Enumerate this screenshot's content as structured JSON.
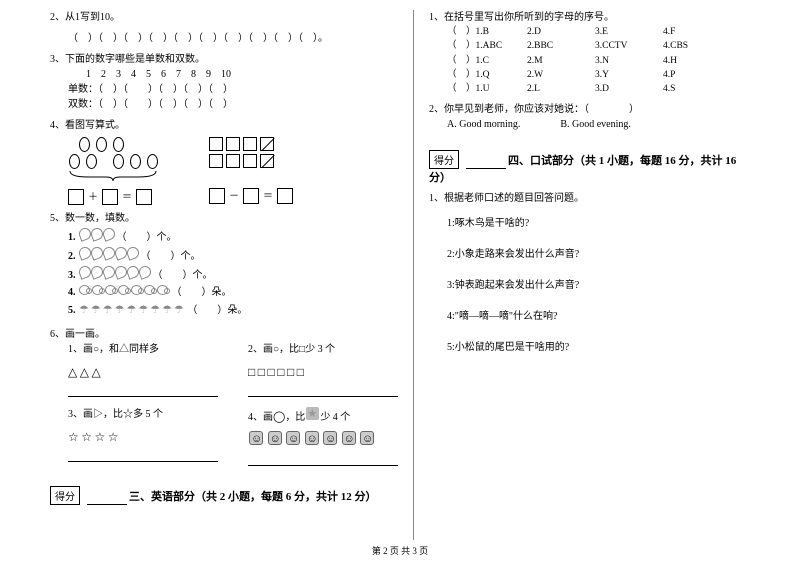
{
  "footer": "第 2 页 共 3 页",
  "left": {
    "q2": {
      "title": "2、从1写到10。",
      "brackets": "（　）（　）（　）（　）（　）（　）（　）（　）（　）（　）。"
    },
    "q3": {
      "title": "3、下面的数字哪些是单数和双数。",
      "numbers": "1　2　3　4　5　6　7　8　9　10",
      "odd": "单数：（　）（　　）（　）（　）（　）",
      "even": "双数：（　）（　　）（　）（　）（　）"
    },
    "q4": {
      "title": "4、看图写算式。",
      "left_ovals_row1": 3,
      "left_ovals_row2": 5,
      "right_group1": 4,
      "right_group2": 4,
      "crossed": [
        true,
        true,
        true,
        true
      ],
      "plus_eq": "＋　　＝",
      "minus_eq": "－　　＝"
    },
    "q5": {
      "title": "5、数一数，填数。",
      "items": [
        {
          "idx": "1.",
          "count": 3,
          "suffix": "（　　）个。",
          "shape": "banana"
        },
        {
          "idx": "2.",
          "count": 5,
          "suffix": "（　　）个。",
          "shape": "banana"
        },
        {
          "idx": "3.",
          "count": 6,
          "suffix": "（　　）个。",
          "shape": "banana"
        },
        {
          "idx": "4.",
          "count": 7,
          "suffix": "（　　）朵。",
          "shape": "shrimp"
        },
        {
          "idx": "5.",
          "count": 9,
          "suffix": "（　　）朵。",
          "shape": "umbrella"
        }
      ]
    },
    "q6": {
      "title": "6、画一画。",
      "sub1": {
        "label": "1、画○，和△同样多",
        "shapes": 3,
        "shape": "tri"
      },
      "sub2": {
        "label": "2、画○，比□少 3 个",
        "shapes": 6,
        "shape": "sq-small"
      },
      "sub3": {
        "label": "3、画▷，比☆多 5 个",
        "shapes": 4,
        "shape": "star"
      },
      "sub4": {
        "label": "4、画◯，比　 少 4 个",
        "shapes": 7,
        "shape": "face",
        "prefixShade": 1
      }
    },
    "section3": {
      "score": "得分",
      "title": "三、英语部分（共 2 小题，每题 6 分，共计 12 分）"
    }
  },
  "right": {
    "q1": {
      "title": "1、在括号里写出你所听到的字母的序号。",
      "rows": [
        [
          "（　）1.B",
          "2.D",
          "3.E",
          "4.F"
        ],
        [
          "（　）1.ABC",
          "2.BBC",
          "3.CCTV",
          "4.CBS"
        ],
        [
          "（　）1.C",
          "2.M",
          "3.N",
          "4.H"
        ],
        [
          "（　）1.Q",
          "2.W",
          "3.Y",
          "4.P"
        ],
        [
          "（　）1.U",
          "2.L",
          "3.D",
          "4.S"
        ]
      ]
    },
    "q2": {
      "title": "2、你早见到老师，你应该对她说：（　　　　）",
      "optA": "A. Good morning.",
      "optB": "B. Good evening."
    },
    "section4": {
      "score": "得分",
      "title": "四、口试部分（共 1 小题，每题 16 分，共计 16 分）"
    },
    "oral": {
      "title": "1、根据老师口述的题目回答问题。",
      "items": [
        "1:啄木鸟是干啥的?",
        "2:小象走路来会发出什么声音?",
        "3:钟表跑起来会发出什么声音?",
        "4:\"嘀—嘀—嘀\"什么在响?",
        "5:小松鼠的尾巴是干啥用的?"
      ]
    }
  }
}
